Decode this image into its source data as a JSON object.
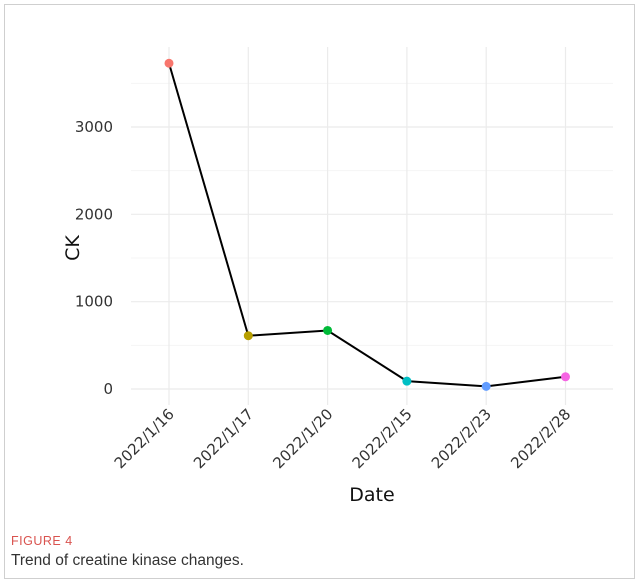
{
  "figure": {
    "label": "FIGURE 4",
    "caption": "Trend of creatine kinase changes."
  },
  "chart_data": {
    "type": "line",
    "title": "",
    "xlabel": "Date",
    "ylabel": "CK",
    "categories": [
      "2022/1/16",
      "2022/1/17",
      "2022/1/20",
      "2022/2/15",
      "2022/2/23",
      "2022/2/28"
    ],
    "values": [
      3730,
      610,
      670,
      90,
      30,
      140
    ],
    "point_colors": [
      "#F8766D",
      "#B79F00",
      "#00BA38",
      "#00BFC4",
      "#619CFF",
      "#F564E3"
    ],
    "line_color": "#000000",
    "yticks": [
      0,
      1000,
      2000,
      3000
    ],
    "ylim": [
      -200,
      3900
    ],
    "grid": true,
    "legend": "none"
  }
}
